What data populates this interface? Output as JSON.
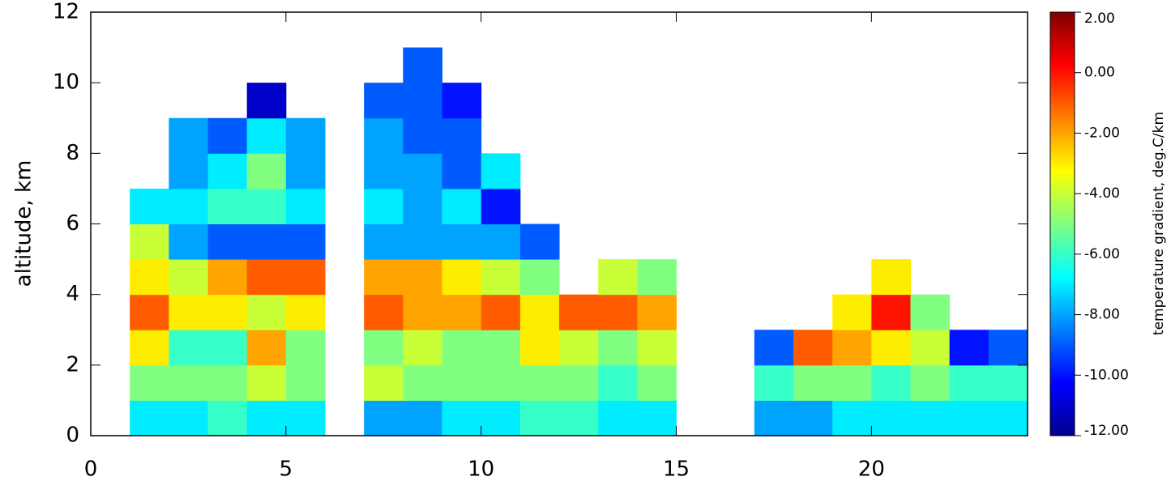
{
  "chart_data": {
    "type": "heatmap",
    "ylabel": "altitude, km",
    "colorbar_label": "temperature gradient, deg.C/km",
    "colormap": "jet",
    "x": [
      0.5,
      1.5,
      2.5,
      3.5,
      4.5,
      5.5,
      6.5,
      7.5,
      8.5,
      9.5,
      10.5,
      11.5,
      12.5,
      13.5,
      14.5,
      15.5,
      16.5,
      17.5,
      18.5,
      19.5,
      20.5,
      21.5,
      22.5,
      23.5
    ],
    "y": [
      0.5,
      1.5,
      2.5,
      3.5,
      4.5,
      5.5,
      6.5,
      7.5,
      8.5,
      9.5,
      10.5,
      11.5
    ],
    "z": [
      [
        null,
        -7,
        -7,
        -6,
        -7,
        -7,
        null,
        -8,
        -8,
        -7,
        -7,
        -6,
        -6,
        -7,
        -7,
        null,
        null,
        -8,
        -8,
        -7,
        -7,
        -7,
        -7,
        -7
      ],
      [
        null,
        -5,
        -5,
        -5,
        -4,
        -5,
        null,
        -4,
        -5,
        -5,
        -5,
        -5,
        -5,
        -6,
        -5,
        null,
        null,
        -6,
        -5,
        -5,
        -6,
        -5,
        -6,
        -6
      ],
      [
        null,
        -3,
        -6,
        -6,
        -2,
        -5,
        null,
        -5,
        -4,
        -5,
        -5,
        -3,
        -4,
        -5,
        -4,
        null,
        null,
        -9,
        -1,
        -2,
        -3,
        -4,
        -10,
        -9
      ],
      [
        null,
        -1,
        -3,
        -3,
        -4,
        -3,
        null,
        -1,
        -2,
        -2,
        -1,
        -3,
        -1,
        -1,
        -2,
        null,
        null,
        null,
        null,
        -3,
        0,
        -5,
        null,
        null
      ],
      [
        null,
        -3,
        -4,
        -2,
        -1,
        -1,
        null,
        -2,
        -2,
        -3,
        -4,
        -5,
        null,
        -4,
        -5,
        null,
        null,
        null,
        null,
        null,
        -3,
        null,
        null,
        null
      ],
      [
        null,
        -4,
        -8,
        -9,
        -9,
        -9,
        null,
        -8,
        -8,
        -8,
        -8,
        -9,
        null,
        null,
        null,
        null,
        null,
        null,
        null,
        null,
        null,
        null,
        null,
        null
      ],
      [
        null,
        -7,
        -7,
        -6,
        -6,
        -7,
        null,
        -7,
        -8,
        -7,
        -10,
        null,
        null,
        null,
        null,
        null,
        null,
        null,
        null,
        null,
        null,
        null,
        null,
        null
      ],
      [
        null,
        null,
        -8,
        -7,
        -5,
        -8,
        null,
        -8,
        -8,
        -9,
        -7,
        null,
        null,
        null,
        null,
        null,
        null,
        null,
        null,
        null,
        null,
        null,
        null,
        null
      ],
      [
        null,
        null,
        -8,
        -9,
        -7,
        -8,
        null,
        -8,
        -9,
        -9,
        null,
        null,
        null,
        null,
        null,
        null,
        null,
        null,
        null,
        null,
        null,
        null,
        null,
        null
      ],
      [
        null,
        null,
        null,
        null,
        -11,
        null,
        null,
        -9,
        -9,
        -10,
        null,
        null,
        null,
        null,
        null,
        null,
        null,
        null,
        null,
        null,
        null,
        null,
        null,
        null
      ],
      [
        null,
        null,
        null,
        null,
        null,
        null,
        null,
        null,
        -9,
        null,
        null,
        null,
        null,
        null,
        null,
        null,
        null,
        null,
        null,
        null,
        null,
        null,
        null,
        null
      ],
      [
        null,
        null,
        null,
        null,
        null,
        null,
        null,
        null,
        null,
        null,
        null,
        null,
        null,
        null,
        null,
        null,
        null,
        null,
        null,
        null,
        null,
        null,
        null,
        null
      ]
    ],
    "xlim": [
      0,
      24
    ],
    "xticks": [
      0,
      5,
      10,
      15,
      20
    ],
    "ylim": [
      0,
      12
    ],
    "yticks": [
      0,
      2,
      4,
      6,
      8,
      10,
      12
    ],
    "zlim": [
      -12,
      2
    ],
    "zticks": [
      {
        "value": 2,
        "label": "2.00"
      },
      {
        "value": 0,
        "label": "0.00"
      },
      {
        "value": -2,
        "label": "-2.00"
      },
      {
        "value": -4,
        "label": "-4.00"
      },
      {
        "value": -6,
        "label": "-6.00"
      },
      {
        "value": -8,
        "label": "-8.00"
      },
      {
        "value": -10,
        "label": "-10.00"
      },
      {
        "value": -12,
        "label": "-12.00"
      }
    ]
  }
}
